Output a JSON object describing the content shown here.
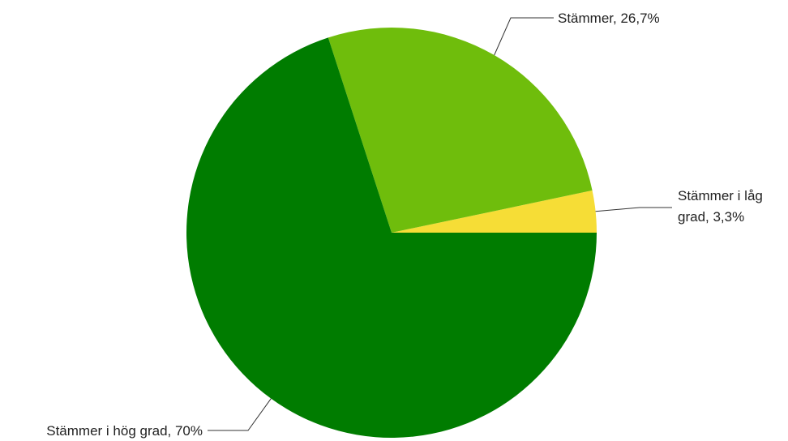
{
  "chart_data": {
    "type": "pie",
    "start_angle_deg": 0,
    "direction": "counterclockwise",
    "slices": [
      {
        "label": "Stämmer i låg grad",
        "value": 3.3,
        "display": "3,3%",
        "color": "#f6dd36"
      },
      {
        "label": "Stämmer",
        "value": 26.7,
        "display": "26,7%",
        "color": "#6fbd0c"
      },
      {
        "label": "Stämmer i hög grad",
        "value": 70,
        "display": "70%",
        "color": "#007c00"
      }
    ]
  }
}
